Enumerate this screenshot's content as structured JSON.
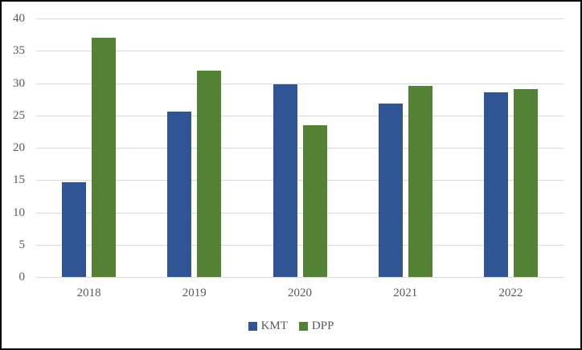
{
  "figure": {
    "border_color": "#000000",
    "background_color": "#ffffff"
  },
  "axis": {
    "tick_label_color": "#595959",
    "gridline_color": "#d9d9d9"
  },
  "legend": {
    "position": "bottom-center",
    "text_color": "#595959",
    "items": [
      {
        "label": "KMT",
        "color": "#2f5594"
      },
      {
        "label": "DPP",
        "color": "#548235"
      }
    ]
  },
  "chart_data": {
    "type": "bar",
    "title": "",
    "xlabel": "",
    "ylabel": "",
    "categories": [
      "2018",
      "2019",
      "2020",
      "2021",
      "2022"
    ],
    "series": [
      {
        "name": "KMT",
        "color": "#2f5594",
        "values": [
          14.6,
          25.6,
          29.8,
          26.8,
          28.6
        ]
      },
      {
        "name": "DPP",
        "color": "#548235",
        "values": [
          37.0,
          31.9,
          23.5,
          29.6,
          29.1
        ]
      }
    ],
    "ylim": [
      0,
      40
    ],
    "yticks": [
      0,
      5,
      10,
      15,
      20,
      25,
      30,
      35,
      40
    ],
    "grid": true,
    "legend_position": "bottom"
  }
}
